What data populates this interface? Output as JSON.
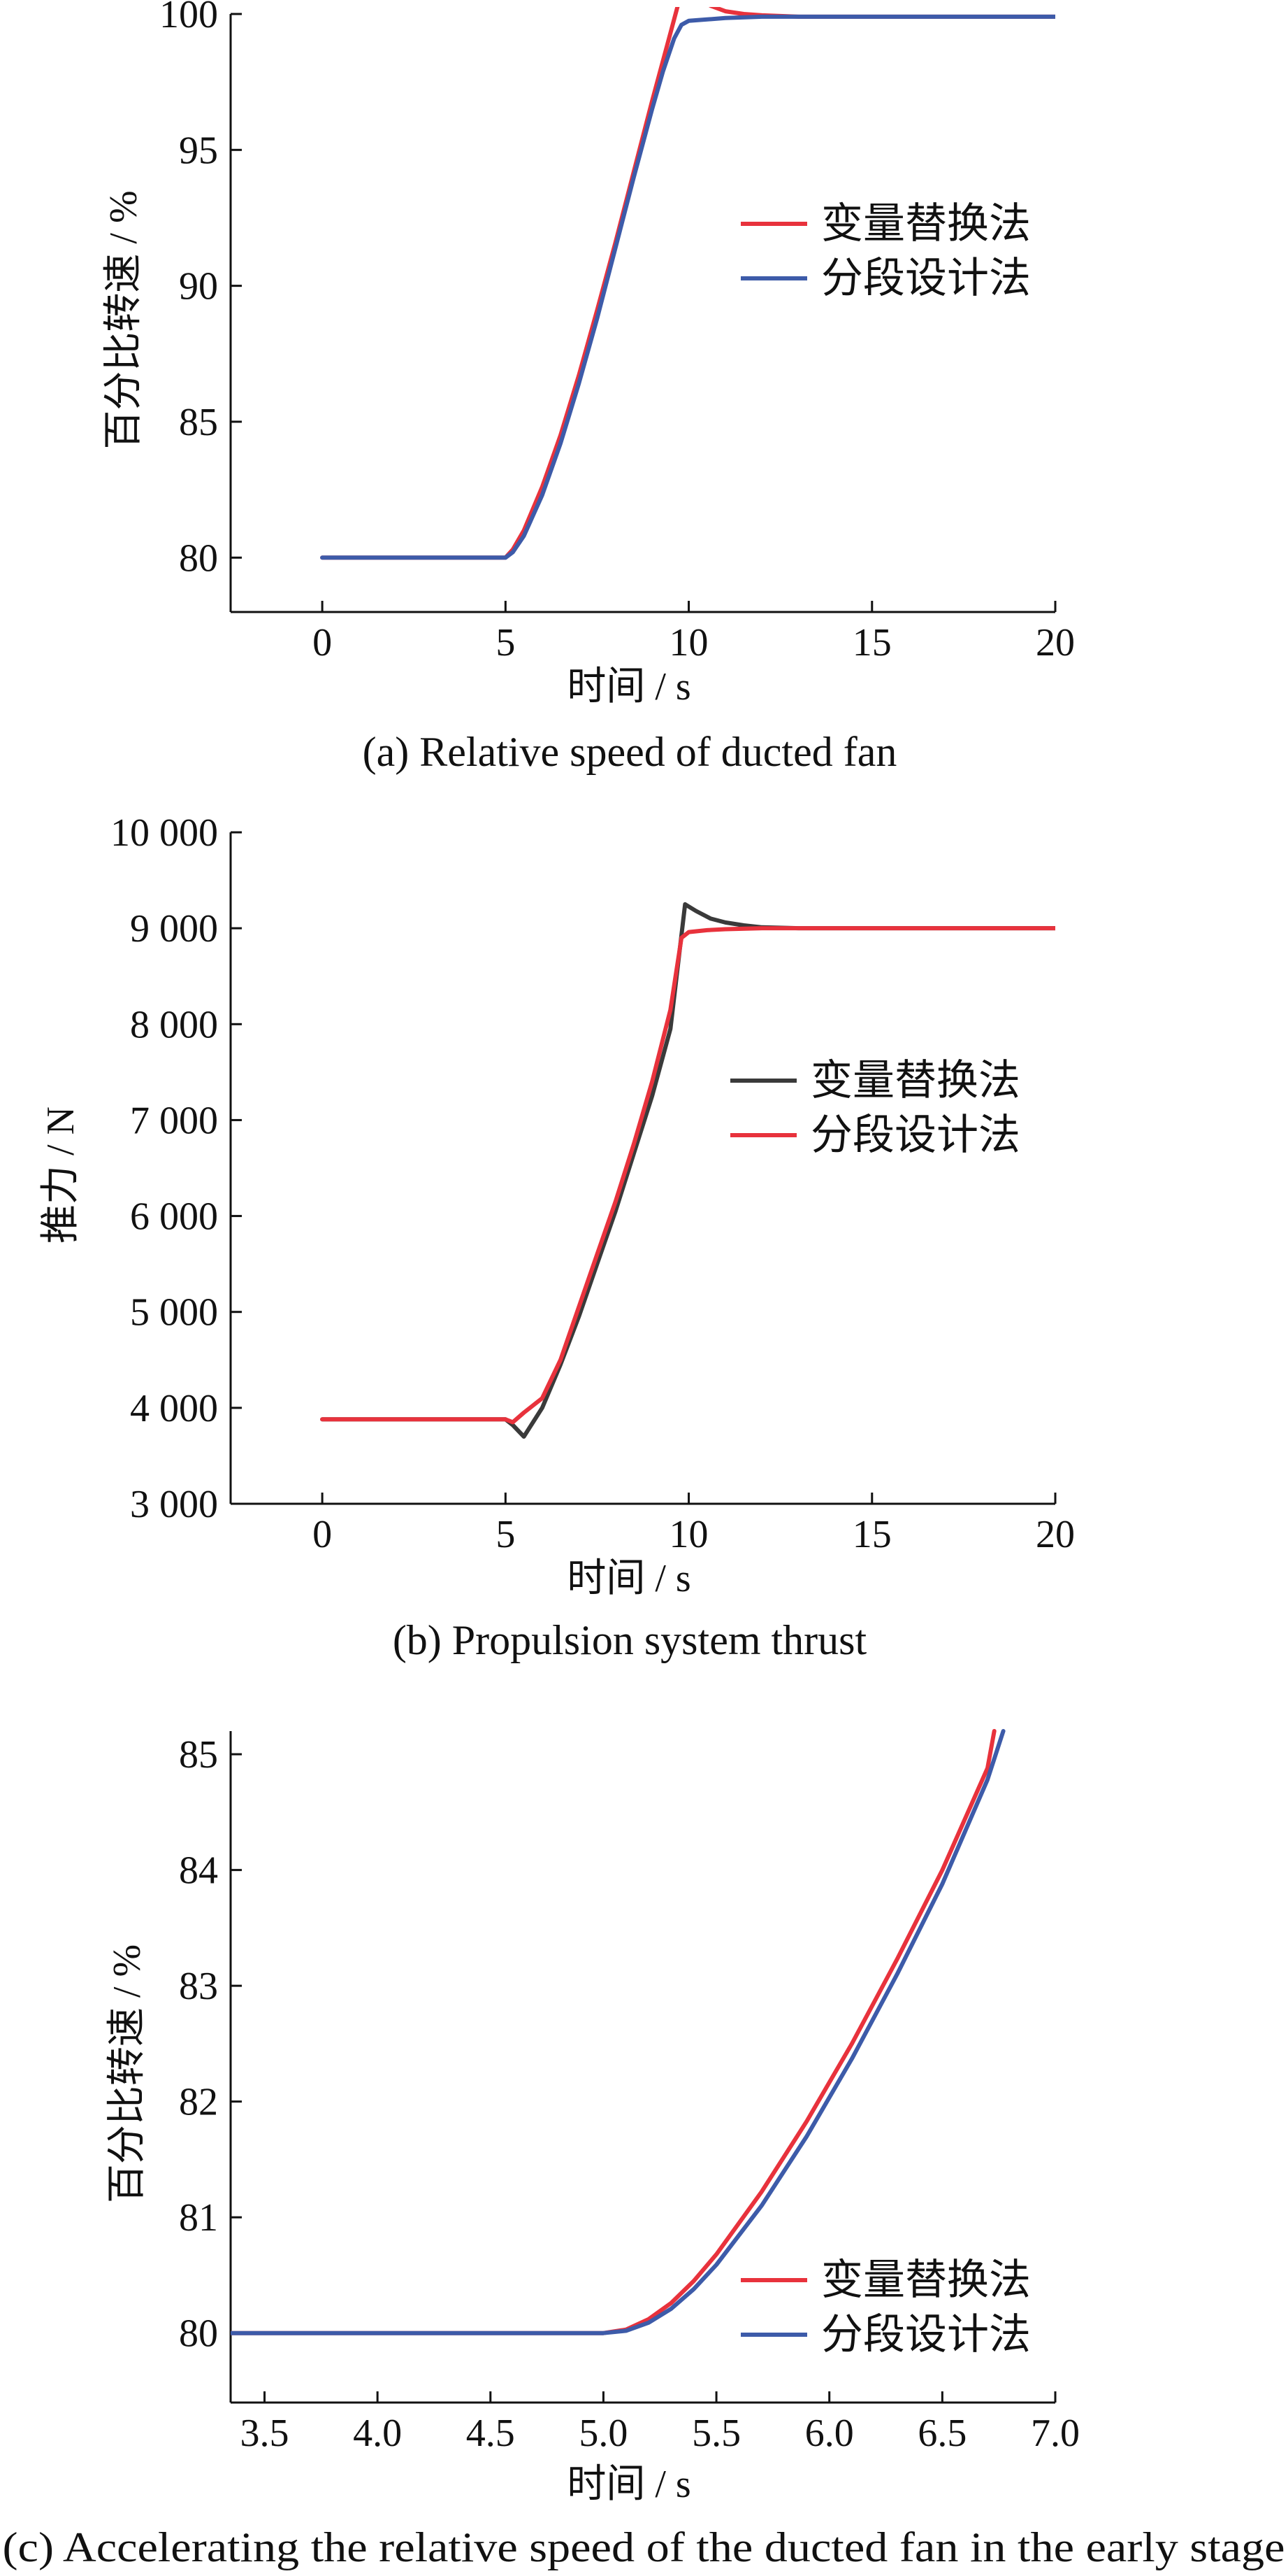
{
  "chart_data": [
    {
      "id": "a",
      "type": "line",
      "caption": "(a) Relative speed of ducted fan",
      "xlabel": "时间 / s",
      "ylabel": "百分比转速 / %",
      "xlim": [
        -2.5,
        20
      ],
      "ylim": [
        78,
        100
      ],
      "xticks": [
        0,
        5,
        10,
        15,
        20
      ],
      "xtick_labels": [
        "0",
        "5",
        "10",
        "15",
        "20"
      ],
      "yticks": [
        80,
        85,
        90,
        95,
        100
      ],
      "ytick_labels": [
        "80",
        "85",
        "90",
        "95",
        "100"
      ],
      "legend_position": "right",
      "series": [
        {
          "name": "变量替换法",
          "color": "#e8323c",
          "x": [
            0,
            5.0,
            5.2,
            5.5,
            6.0,
            6.5,
            7.0,
            7.5,
            8.0,
            8.5,
            9.0,
            9.4,
            9.7,
            9.9,
            10.2,
            10.6,
            11.0,
            11.5,
            12.0,
            13.0,
            15.0,
            20.0
          ],
          "y": [
            80,
            80,
            80.3,
            81.0,
            82.6,
            84.5,
            86.7,
            89.1,
            91.6,
            94.2,
            96.8,
            98.8,
            100.3,
            101.0,
            100.6,
            100.3,
            100.1,
            100.0,
            99.95,
            99.9,
            99.9,
            99.9
          ]
        },
        {
          "name": "分段设计法",
          "color": "#3d5ba9",
          "x": [
            0,
            5.0,
            5.2,
            5.5,
            6.0,
            6.5,
            7.0,
            7.5,
            8.0,
            8.5,
            9.0,
            9.3,
            9.6,
            9.8,
            10.0,
            10.5,
            11.0,
            12.0,
            15.0,
            20.0
          ],
          "y": [
            80,
            80,
            80.2,
            80.8,
            82.3,
            84.2,
            86.4,
            88.8,
            91.4,
            94.0,
            96.5,
            97.9,
            99.1,
            99.6,
            99.75,
            99.8,
            99.85,
            99.9,
            99.9,
            99.9
          ]
        }
      ]
    },
    {
      "id": "b",
      "type": "line",
      "caption": "(b) Propulsion system thrust",
      "xlabel": "时间 / s",
      "ylabel": "推力 / N",
      "xlim": [
        -2.5,
        20
      ],
      "ylim": [
        3000,
        10000
      ],
      "xticks": [
        0,
        5,
        10,
        15,
        20
      ],
      "xtick_labels": [
        "0",
        "5",
        "10",
        "15",
        "20"
      ],
      "yticks": [
        3000,
        4000,
        5000,
        6000,
        7000,
        8000,
        9000,
        10000
      ],
      "ytick_labels": [
        "3 000",
        "4 000",
        "5 000",
        "6 000",
        "7 000",
        "8 000",
        "9 000",
        "10 000"
      ],
      "legend_position": "right",
      "series": [
        {
          "name": "变量替换法",
          "color": "#3a3a3a",
          "x": [
            0,
            5.0,
            5.2,
            5.5,
            6.0,
            6.5,
            7.0,
            7.5,
            8.0,
            8.5,
            9.0,
            9.5,
            9.9,
            10.2,
            10.6,
            11.0,
            11.5,
            12.0,
            13.0,
            15.0,
            20.0
          ],
          "y": [
            3880,
            3880,
            3820,
            3700,
            4000,
            4450,
            4950,
            5500,
            6050,
            6650,
            7250,
            7950,
            9250,
            9180,
            9100,
            9060,
            9030,
            9010,
            9000,
            9000,
            9000
          ]
        },
        {
          "name": "分段设计法",
          "color": "#e8323c",
          "x": [
            0,
            5.0,
            5.2,
            5.5,
            6.0,
            6.5,
            7.0,
            7.5,
            8.0,
            8.5,
            9.0,
            9.5,
            9.8,
            10.0,
            10.5,
            11.0,
            12.0,
            15.0,
            20.0
          ],
          "y": [
            3880,
            3880,
            3850,
            3950,
            4100,
            4500,
            5050,
            5600,
            6150,
            6750,
            7400,
            8150,
            8900,
            8960,
            8980,
            8990,
            9000,
            9000,
            9000
          ]
        }
      ]
    },
    {
      "id": "c",
      "type": "line",
      "caption": "(c) Accelerating the relative speed of the ducted fan in the early stage",
      "xlabel": "时间 / s",
      "ylabel": "百分比转速 / %",
      "xlim": [
        3.35,
        7.0
      ],
      "ylim": [
        79.4,
        85.2
      ],
      "xticks": [
        3.5,
        4.0,
        4.5,
        5.0,
        5.5,
        6.0,
        6.5,
        7.0
      ],
      "xtick_labels": [
        "3.5",
        "4.0",
        "4.5",
        "5.0",
        "5.5",
        "6.0",
        "6.5",
        "7.0"
      ],
      "yticks": [
        80,
        81,
        82,
        83,
        84,
        85
      ],
      "ytick_labels": [
        "80",
        "81",
        "82",
        "83",
        "84",
        "85"
      ],
      "legend_position": "bottom-right",
      "series": [
        {
          "name": "变量替换法",
          "color": "#e8323c",
          "x": [
            3.35,
            5.0,
            5.1,
            5.2,
            5.3,
            5.4,
            5.5,
            5.7,
            5.9,
            6.1,
            6.3,
            6.5,
            6.7,
            6.73
          ],
          "y": [
            80,
            80,
            80.03,
            80.12,
            80.26,
            80.45,
            80.68,
            81.22,
            81.83,
            82.5,
            83.23,
            84.0,
            84.88,
            85.2
          ]
        },
        {
          "name": "分段设计法",
          "color": "#3d5ba9",
          "x": [
            3.35,
            5.0,
            5.1,
            5.2,
            5.3,
            5.4,
            5.5,
            5.7,
            5.9,
            6.1,
            6.3,
            6.5,
            6.7,
            6.77
          ],
          "y": [
            80,
            80,
            80.02,
            80.09,
            80.21,
            80.38,
            80.59,
            81.1,
            81.7,
            82.37,
            83.1,
            83.88,
            84.78,
            85.2
          ]
        }
      ]
    }
  ]
}
